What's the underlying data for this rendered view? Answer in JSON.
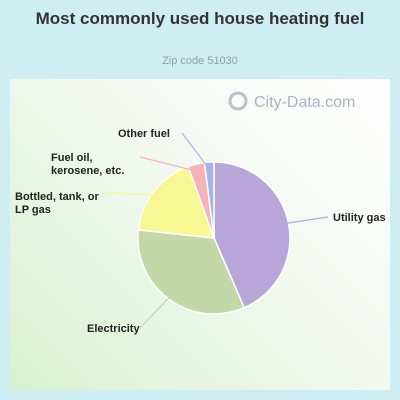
{
  "chart_data": {
    "type": "pie",
    "title": "Most commonly used house heating fuel",
    "subtitle": "Zip code 51030",
    "slices": [
      {
        "label": "Utility gas",
        "value": 43.5,
        "color": "#b9a6d9"
      },
      {
        "label": "Electricity",
        "value": 33.2,
        "color": "#c3d8a8"
      },
      {
        "label": "Bottled, tank, or LP gas",
        "value": 17.8,
        "color": "#f7f794"
      },
      {
        "label": "Fuel oil, kerosene, etc.",
        "value": 3.5,
        "color": "#f5b3b8"
      },
      {
        "label": "Other fuel",
        "value": 2.0,
        "color": "#a7b4ea"
      }
    ]
  },
  "watermark": "City-Data.com"
}
